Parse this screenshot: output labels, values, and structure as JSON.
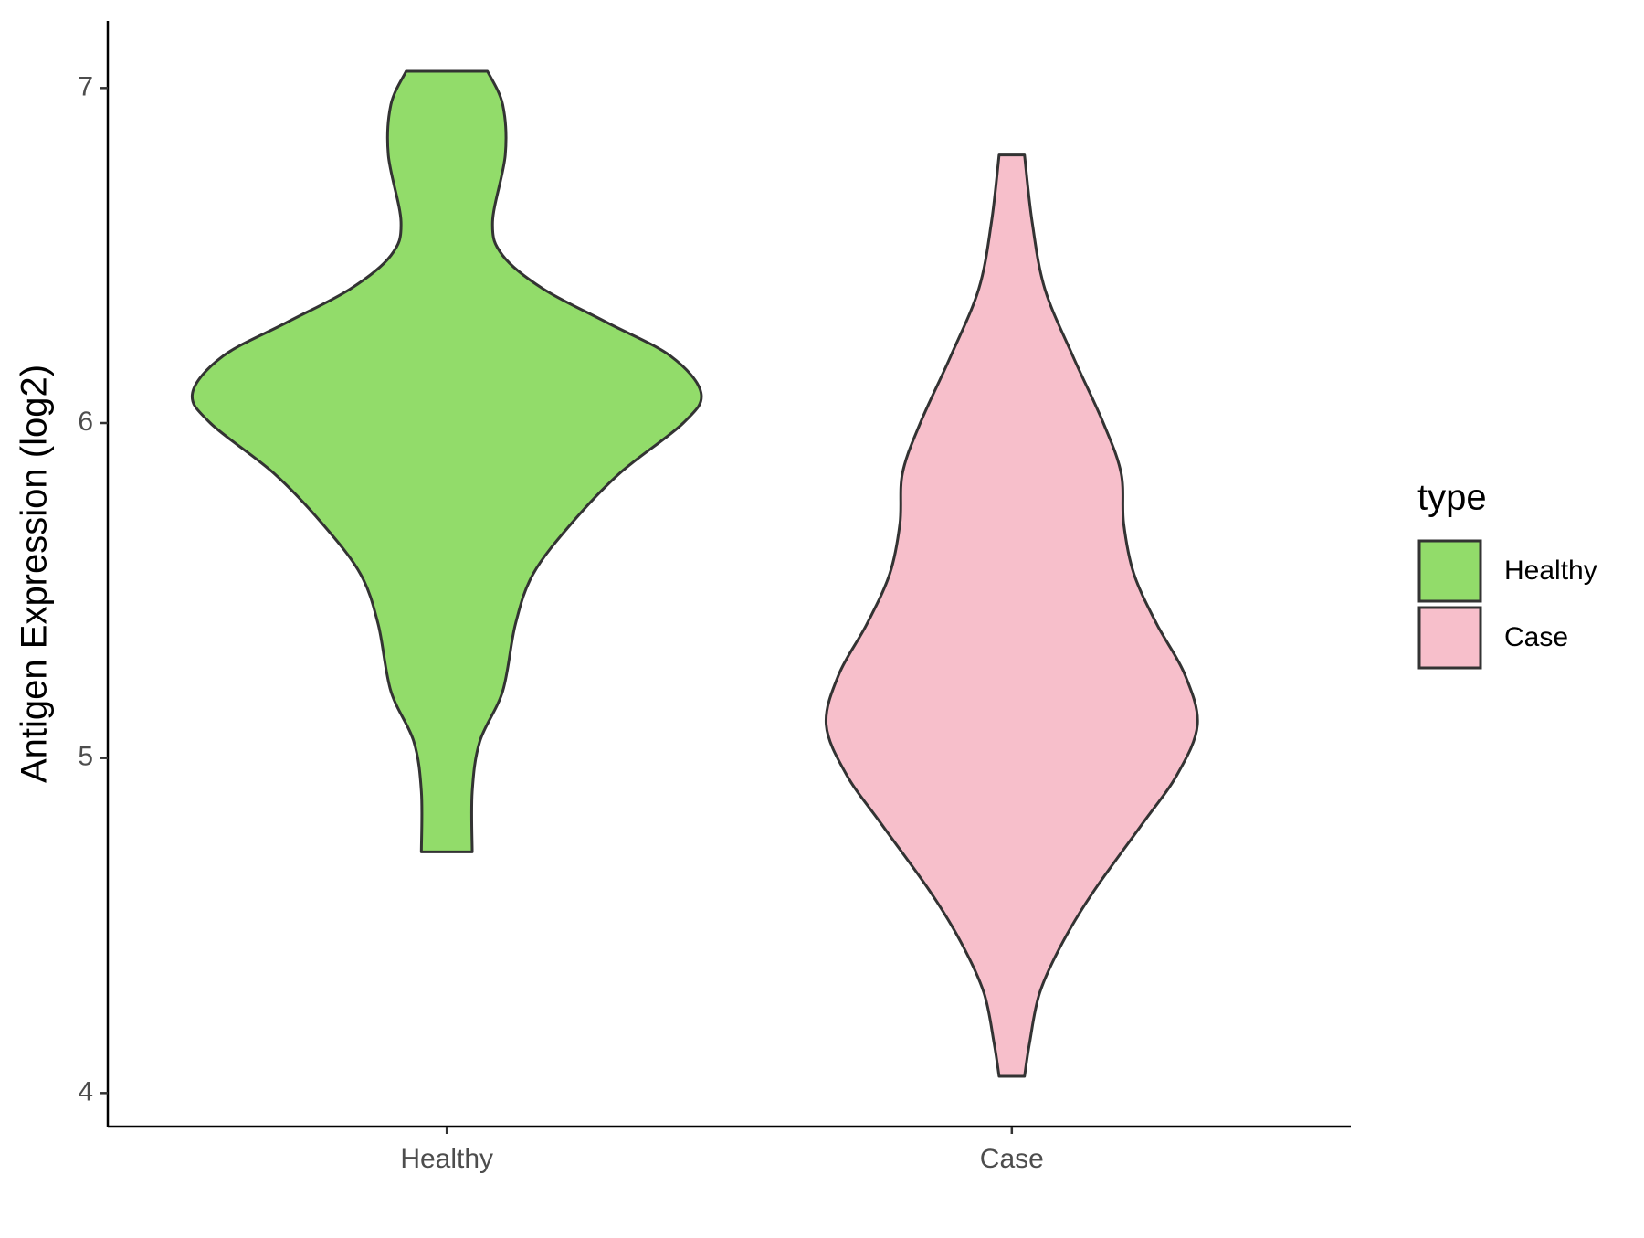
{
  "chart_data": {
    "type": "violin",
    "y_label": "Antigen Expression (log2)",
    "categories": [
      "Healthy",
      "Case"
    ],
    "ylim": [
      3.9,
      7.2
    ],
    "yticks": [
      4,
      5,
      6,
      7
    ],
    "legend_title": "type",
    "legend_position": "right",
    "series": [
      {
        "name": "Healthy",
        "color": "#92dc6a",
        "y": [
          7.05,
          6.95,
          6.8,
          6.6,
          6.5,
          6.4,
          6.3,
          6.2,
          6.09,
          6.0,
          5.85,
          5.7,
          5.55,
          5.4,
          5.2,
          5.05,
          4.9,
          4.72
        ],
        "width": [
          0.16,
          0.22,
          0.23,
          0.18,
          0.22,
          0.38,
          0.63,
          0.88,
          1.0,
          0.93,
          0.68,
          0.49,
          0.34,
          0.27,
          0.22,
          0.13,
          0.1,
          0.1
        ]
      },
      {
        "name": "Case",
        "color": "#f7bfcb",
        "y": [
          6.8,
          6.6,
          6.4,
          6.2,
          6.0,
          5.85,
          5.7,
          5.55,
          5.4,
          5.25,
          5.1,
          4.95,
          4.8,
          4.6,
          4.45,
          4.3,
          4.15,
          4.05
        ],
        "width": [
          0.05,
          0.08,
          0.13,
          0.24,
          0.36,
          0.43,
          0.44,
          0.48,
          0.57,
          0.68,
          0.73,
          0.65,
          0.51,
          0.32,
          0.2,
          0.11,
          0.07,
          0.05
        ]
      }
    ]
  }
}
